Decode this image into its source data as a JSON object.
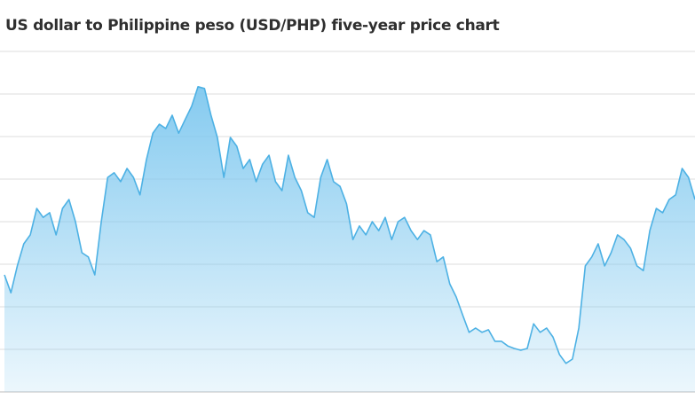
{
  "chart_data": {
    "type": "area",
    "title": "US dollar to Philippine peso (USD/PHP) five-year price chart",
    "values": [
      2.75,
      2.33,
      2.96,
      3.48,
      3.69,
      4.31,
      4.1,
      4.21,
      3.69,
      4.31,
      4.52,
      4.0,
      3.27,
      3.17,
      2.75,
      4.0,
      5.04,
      5.15,
      4.94,
      5.25,
      5.04,
      4.63,
      5.46,
      6.08,
      6.29,
      6.19,
      6.5,
      6.08,
      6.4,
      6.71,
      7.17,
      7.13,
      6.5,
      5.98,
      5.04,
      5.98,
      5.77,
      5.25,
      5.46,
      4.94,
      5.35,
      5.56,
      4.94,
      4.73,
      5.56,
      5.04,
      4.73,
      4.21,
      4.1,
      5.04,
      5.46,
      4.94,
      4.83,
      4.42,
      3.58,
      3.9,
      3.69,
      4.0,
      3.79,
      4.1,
      3.58,
      4.0,
      4.1,
      3.79,
      3.58,
      3.79,
      3.69,
      3.06,
      3.17,
      2.54,
      2.23,
      1.81,
      1.4,
      1.5,
      1.4,
      1.46,
      1.19,
      1.19,
      1.08,
      1.02,
      0.98,
      1.02,
      1.6,
      1.4,
      1.5,
      1.29,
      0.88,
      0.67,
      0.77,
      1.5,
      2.96,
      3.17,
      3.48,
      2.96,
      3.27,
      3.69,
      3.58,
      3.38,
      2.96,
      2.85,
      3.79,
      4.31,
      4.21,
      4.52,
      4.63,
      5.25,
      5.04,
      4.52
    ],
    "color": "#4db1e4",
    "area_color": "#7fc8ef",
    "ylim": [
      0,
      8
    ],
    "yticks": [
      0,
      1,
      2,
      3,
      4,
      5,
      6,
      7,
      8
    ],
    "grid": true
  }
}
